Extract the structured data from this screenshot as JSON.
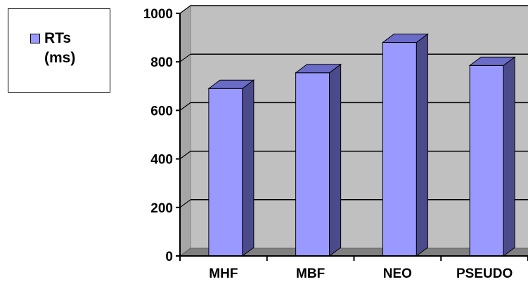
{
  "chart_data": {
    "type": "bar",
    "categories": [
      "MHF",
      "MBF",
      "NEO",
      "PSEUDO"
    ],
    "series": [
      {
        "name": "RTs\n(ms)",
        "values": [
          690,
          755,
          880,
          785
        ]
      }
    ],
    "ylim": [
      0,
      1000
    ],
    "yticks": [
      "0",
      "200",
      "400",
      "600",
      "800",
      "1000"
    ],
    "grid": true,
    "legend_position": "top-left",
    "colors": {
      "bar_front": "#9999ff",
      "bar_side": "#4b4b8c",
      "bar_top": "#6b6bc8",
      "wall": "#c0c0c0",
      "floor": "#808080"
    }
  }
}
